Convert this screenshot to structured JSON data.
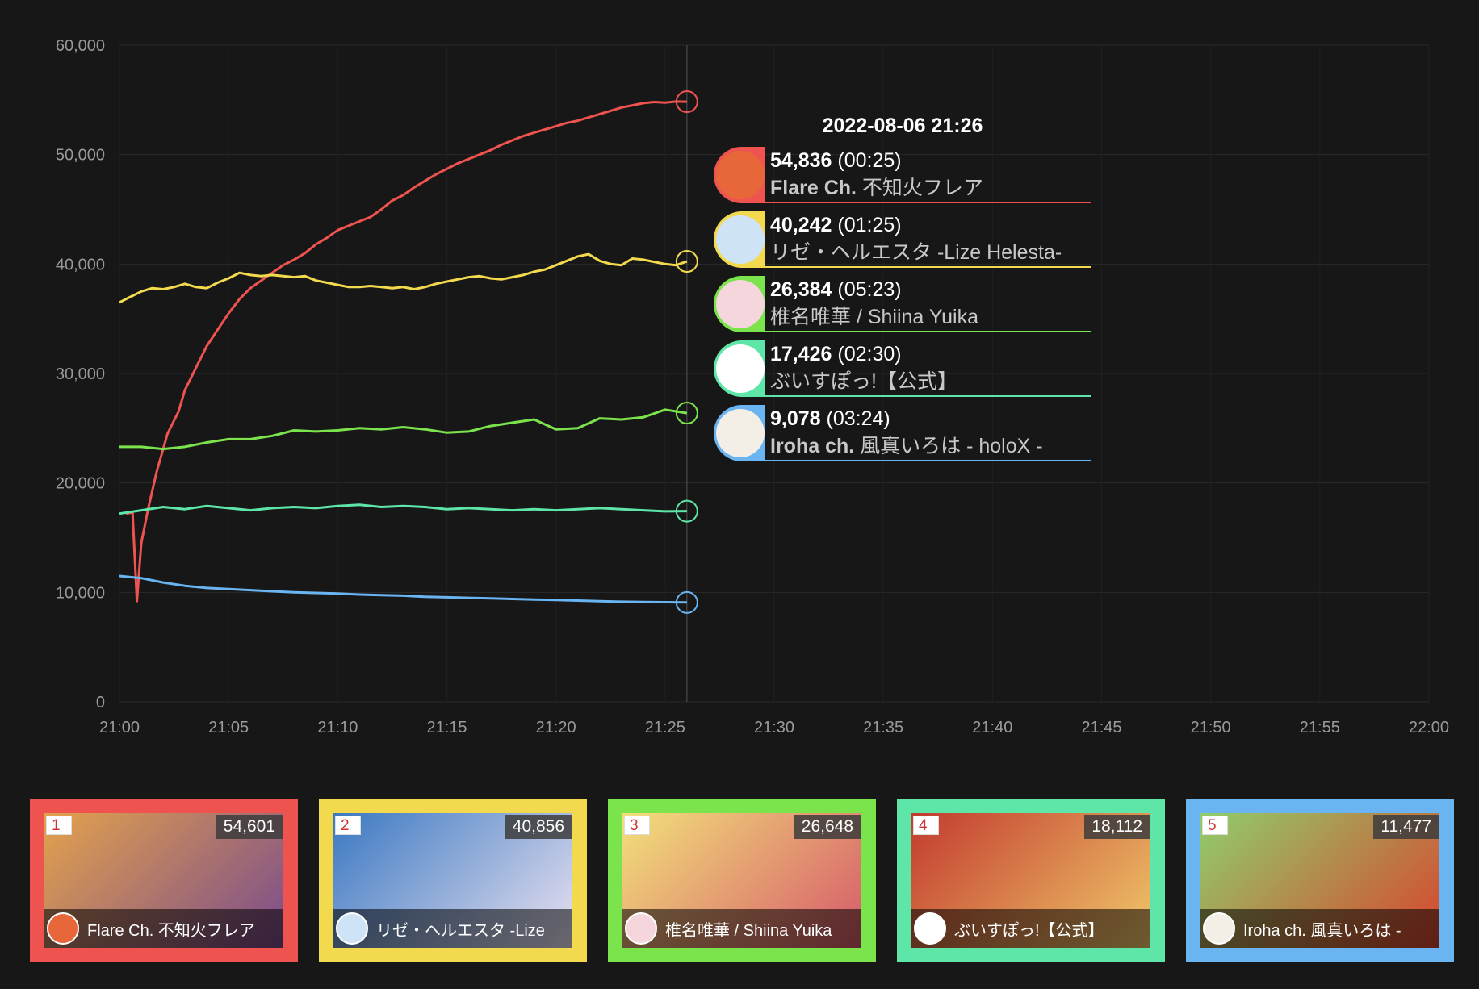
{
  "chart_data": {
    "type": "line",
    "ylim": [
      0,
      60000
    ],
    "y_ticks": [
      "0",
      "10,000",
      "20,000",
      "30,000",
      "40,000",
      "50,000",
      "60,000"
    ],
    "x_ticks": [
      "21:00",
      "21:05",
      "21:10",
      "21:15",
      "21:20",
      "21:25",
      "21:30",
      "21:35",
      "21:40",
      "21:45",
      "21:50",
      "21:55",
      "22:00"
    ],
    "xlim_minutes": [
      0,
      60
    ],
    "grid": true,
    "crosshair_minute": 26,
    "series": [
      {
        "name": "Flare Ch. 不知火フレア",
        "color": "#ef5350",
        "x": [
          0.3,
          0.6,
          0.8,
          1.0,
          1.3,
          1.7,
          2.2,
          2.7,
          3.0,
          3.5,
          4.0,
          4.5,
          5.0,
          5.5,
          6.0,
          6.5,
          7.0,
          7.5,
          8.0,
          8.5,
          9.0,
          9.5,
          10.0,
          10.5,
          11.0,
          11.5,
          12.0,
          12.5,
          13.0,
          13.5,
          14.0,
          14.5,
          15.0,
          15.5,
          16.0,
          16.5,
          17.0,
          17.5,
          18.0,
          18.5,
          19.0,
          19.5,
          20.0,
          20.5,
          21.0,
          21.5,
          22.0,
          22.5,
          23.0,
          23.5,
          24.0,
          24.5,
          25.0,
          25.5,
          26.0
        ],
        "y": [
          17200,
          17300,
          9200,
          14500,
          17500,
          21000,
          24500,
          26500,
          28500,
          30500,
          32500,
          34000,
          35500,
          36800,
          37800,
          38500,
          39200,
          39900,
          40400,
          41000,
          41800,
          42400,
          43100,
          43500,
          43900,
          44300,
          45000,
          45800,
          46300,
          47000,
          47600,
          48200,
          48700,
          49200,
          49600,
          50000,
          50400,
          50900,
          51300,
          51700,
          52000,
          52300,
          52600,
          52900,
          53100,
          53400,
          53700,
          54000,
          54300,
          54500,
          54700,
          54800,
          54750,
          54850,
          54836
        ]
      },
      {
        "name": "リゼ・ヘルエスタ -Lize Helesta-",
        "color": "#f2d94e",
        "x": [
          0,
          0.5,
          1,
          1.5,
          2,
          2.5,
          3,
          3.5,
          4,
          4.5,
          5,
          5.5,
          6,
          6.5,
          7,
          7.5,
          8,
          8.5,
          9,
          9.5,
          10,
          10.5,
          11,
          11.5,
          12,
          12.5,
          13,
          13.5,
          14,
          14.5,
          15,
          15.5,
          16,
          16.5,
          17,
          17.5,
          18,
          18.5,
          19,
          19.5,
          20,
          20.5,
          21,
          21.5,
          22,
          22.5,
          23,
          23.5,
          24,
          24.5,
          25,
          25.5,
          26
        ],
        "y": [
          36500,
          37000,
          37500,
          37800,
          37700,
          37900,
          38200,
          37900,
          37800,
          38300,
          38700,
          39200,
          39000,
          38900,
          39000,
          38900,
          38800,
          38900,
          38500,
          38300,
          38100,
          37900,
          37900,
          38000,
          37900,
          37800,
          37900,
          37700,
          37900,
          38200,
          38400,
          38600,
          38800,
          38900,
          38700,
          38600,
          38800,
          39000,
          39300,
          39500,
          39900,
          40300,
          40700,
          40900,
          40300,
          40000,
          39900,
          40500,
          40400,
          40200,
          40000,
          39900,
          40242
        ]
      },
      {
        "name": "椎名唯華 / Shiina Yuika",
        "color": "#7be34c",
        "x": [
          0,
          1,
          2,
          3,
          4,
          5,
          6,
          7,
          8,
          9,
          10,
          11,
          12,
          13,
          14,
          15,
          16,
          17,
          18,
          19,
          20,
          21,
          22,
          23,
          24,
          25,
          26
        ],
        "y": [
          23300,
          23300,
          23100,
          23300,
          23700,
          24000,
          24000,
          24300,
          24800,
          24700,
          24800,
          25000,
          24900,
          25100,
          24900,
          24600,
          24700,
          25200,
          25500,
          25800,
          24900,
          25000,
          25900,
          25800,
          26000,
          26700,
          26384
        ]
      },
      {
        "name": "ぶいすぽっ!【公式】",
        "color": "#5ee6a8",
        "x": [
          0,
          1,
          2,
          3,
          4,
          5,
          6,
          7,
          8,
          9,
          10,
          11,
          12,
          13,
          14,
          15,
          16,
          17,
          18,
          19,
          20,
          21,
          22,
          23,
          24,
          25,
          26
        ],
        "y": [
          17200,
          17500,
          17800,
          17600,
          17900,
          17700,
          17500,
          17700,
          17800,
          17700,
          17900,
          18000,
          17800,
          17900,
          17800,
          17600,
          17700,
          17600,
          17500,
          17600,
          17500,
          17600,
          17700,
          17600,
          17500,
          17400,
          17426
        ]
      },
      {
        "name": "Iroha ch. 風真いろは - holoX -",
        "color": "#6ab4f2",
        "x": [
          0,
          1,
          2,
          3,
          4,
          5,
          6,
          7,
          8,
          9,
          10,
          11,
          12,
          13,
          14,
          15,
          16,
          17,
          18,
          19,
          20,
          21,
          22,
          23,
          24,
          25,
          26
        ],
        "y": [
          11500,
          11300,
          10900,
          10600,
          10400,
          10300,
          10200,
          10100,
          10000,
          9950,
          9900,
          9800,
          9750,
          9700,
          9600,
          9550,
          9500,
          9450,
          9400,
          9350,
          9300,
          9250,
          9200,
          9150,
          9120,
          9100,
          9078
        ]
      }
    ]
  },
  "tooltip": {
    "title": "2022-08-06 21:26",
    "rows": [
      {
        "value": "54,836",
        "duration": "(00:25)",
        "channel_bold": "Flare Ch.",
        "channel_rest": " 不知火フレア",
        "color": "#ef5350",
        "avatar_bg": "#e8673a"
      },
      {
        "value": "40,242",
        "duration": "(01:25)",
        "channel_bold": "",
        "channel_rest": "リゼ・ヘルエスタ -Lize Helesta-",
        "color": "#f2d94e",
        "avatar_bg": "#cfe3f7"
      },
      {
        "value": "26,384",
        "duration": "(05:23)",
        "channel_bold": "",
        "channel_rest": "椎名唯華 / Shiina Yuika",
        "color": "#7be34c",
        "avatar_bg": "#f4d6dc"
      },
      {
        "value": "17,426",
        "duration": "(02:30)",
        "channel_bold": "",
        "channel_rest": "ぶいすぽっ!【公式】",
        "color": "#5ee6a8",
        "avatar_bg": "#ffffff"
      },
      {
        "value": "9,078",
        "duration": "(03:24)",
        "channel_bold": "Iroha ch.",
        "channel_rest": " 風真いろは - holoX -",
        "color": "#6ab4f2",
        "avatar_bg": "#f3efe6"
      }
    ]
  },
  "cards": [
    {
      "rank": "1",
      "views": "54,601",
      "name": "Flare Ch. 不知火フレア",
      "color": "#ef5350",
      "thumb_a": "#e4a24c",
      "thumb_b": "#7a4b8c",
      "avatar_bg": "#e8673a"
    },
    {
      "rank": "2",
      "views": "40,856",
      "name": "リゼ・ヘルエスタ -Lize",
      "color": "#f2d94e",
      "thumb_a": "#3a78c2",
      "thumb_b": "#e9e1f0",
      "avatar_bg": "#cfe3f7"
    },
    {
      "rank": "3",
      "views": "26,648",
      "name": "椎名唯華 / Shiina Yuika",
      "color": "#7be34c",
      "thumb_a": "#f2e07a",
      "thumb_b": "#d65a6a",
      "avatar_bg": "#f4d6dc"
    },
    {
      "rank": "4",
      "views": "18,112",
      "name": "ぶいすぽっ!【公式】",
      "color": "#5ee6a8",
      "thumb_a": "#c23a2e",
      "thumb_b": "#f0c86a",
      "avatar_bg": "#ffffff"
    },
    {
      "rank": "5",
      "views": "11,477",
      "name": "Iroha ch. 風真いろは -",
      "color": "#6ab4f2",
      "thumb_a": "#8fce6a",
      "thumb_b": "#d8452e",
      "avatar_bg": "#f3efe6"
    }
  ]
}
